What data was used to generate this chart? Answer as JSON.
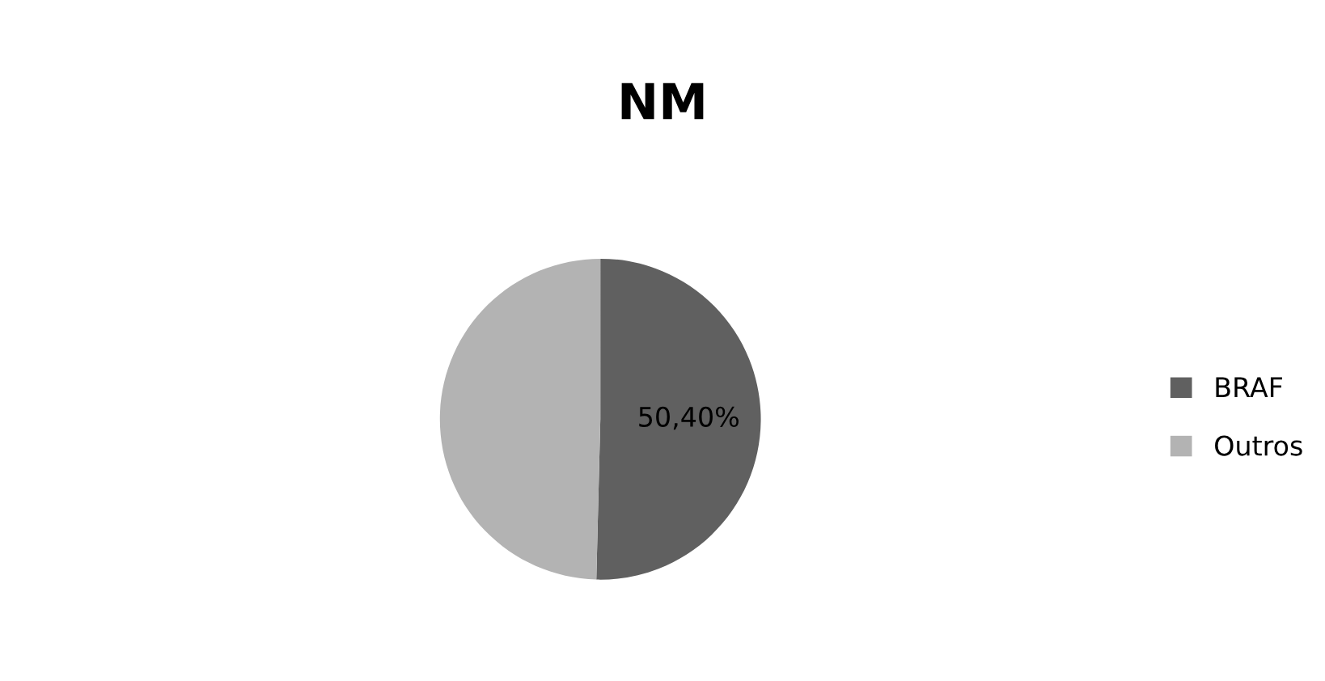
{
  "chart_data": {
    "type": "pie",
    "title": "NM",
    "categories": [
      "BRAF",
      "Outros"
    ],
    "values": [
      50.4,
      49.6
    ],
    "colors": [
      "#606060",
      "#b3b3b3"
    ],
    "value_labels": [
      "50,40%",
      null
    ],
    "legend": "right"
  }
}
